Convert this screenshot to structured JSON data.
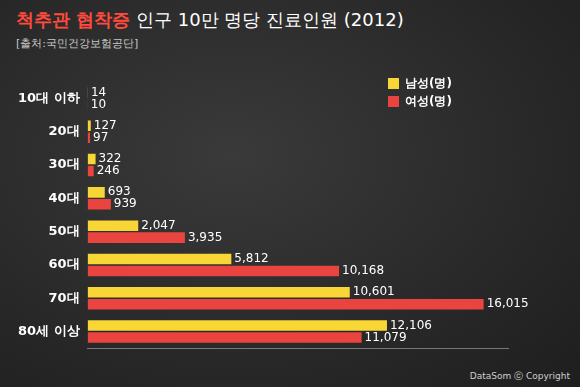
{
  "chart_data": {
    "type": "bar",
    "orientation": "horizontal",
    "title": "척추관 협착증 인구 10만 명당 진료인원 (2012)",
    "subtitle": "[출처:국민건강보험공단]",
    "annotations": [
      "DataSom ⓒ Copyright"
    ],
    "categories": [
      "10대 이하",
      "20대",
      "30대",
      "40대",
      "50대",
      "60대",
      "70대",
      "80세 이상"
    ],
    "series": [
      {
        "name": "남성(명)",
        "color": "#f7d635",
        "values": [
          14,
          127,
          322,
          693,
          2047,
          5812,
          10601,
          12106
        ],
        "value_labels": [
          "14",
          "127",
          "322",
          "693",
          "2,047",
          "5,812",
          "10,601",
          "12,106"
        ]
      },
      {
        "name": "여성(명)",
        "color": "#ea4440",
        "values": [
          10,
          97,
          246,
          939,
          3935,
          10168,
          16015,
          11079
        ],
        "value_labels": [
          "10",
          "97",
          "246",
          "939",
          "3,935",
          "10,168",
          "16,015",
          "11,079"
        ]
      }
    ],
    "xlim": [
      0,
      17000
    ],
    "tick_labels": "y",
    "grid": false,
    "legend": "upper right",
    "data_labels": true
  }
}
